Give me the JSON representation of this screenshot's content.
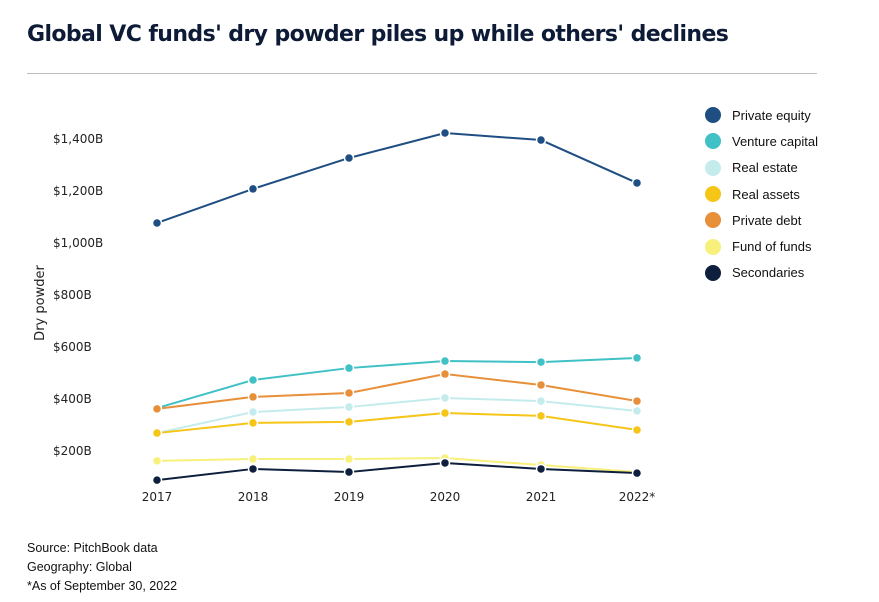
{
  "title": "Global VC funds' dry powder  piles up while others' declines",
  "footer": {
    "source": "Source: PitchBook data",
    "geography": "Geography: Global",
    "note": "*As of September 30, 2022"
  },
  "chart_data": {
    "type": "line",
    "title": "Global VC funds' dry powder  piles up while others' declines",
    "xlabel": "",
    "ylabel": "Dry powder",
    "x": [
      "2017",
      "2018",
      "2019",
      "2020",
      "2021",
      "2022*"
    ],
    "y_ticks": [
      {
        "value": 200,
        "label": "$200B"
      },
      {
        "value": 400,
        "label": "$400B"
      },
      {
        "value": 600,
        "label": "$600B"
      },
      {
        "value": 800,
        "label": "$800B"
      },
      {
        "value": 1000,
        "label": "$1,000B"
      },
      {
        "value": 1200,
        "label": "$1,200B"
      },
      {
        "value": 1400,
        "label": "$1,400B"
      }
    ],
    "ylim": [
      0,
      1400
    ],
    "grid": false,
    "legend_position": "right",
    "series": [
      {
        "name": "Private equity",
        "color": "#1f4e82",
        "values": [
          1077,
          1208,
          1327,
          1423,
          1396,
          1231
        ]
      },
      {
        "name": "Venture capital",
        "color": "#3fc1c6",
        "values": [
          365,
          473,
          519,
          546,
          542,
          558
        ]
      },
      {
        "name": "Real estate",
        "color": "#c4ecec",
        "values": [
          269,
          350,
          369,
          404,
          392,
          354
        ]
      },
      {
        "name": "Real assets",
        "color": "#f5c518",
        "values": [
          269,
          308,
          312,
          346,
          335,
          281
        ]
      },
      {
        "name": "Private debt",
        "color": "#e88f3a",
        "values": [
          362,
          408,
          423,
          496,
          454,
          392
        ]
      },
      {
        "name": "Fund of funds",
        "color": "#f7f07a",
        "values": [
          162,
          169,
          169,
          173,
          146,
          119
        ]
      },
      {
        "name": "Secondaries",
        "color": "#0d1f3c",
        "values": [
          88,
          131,
          119,
          154,
          131,
          115
        ]
      }
    ]
  }
}
